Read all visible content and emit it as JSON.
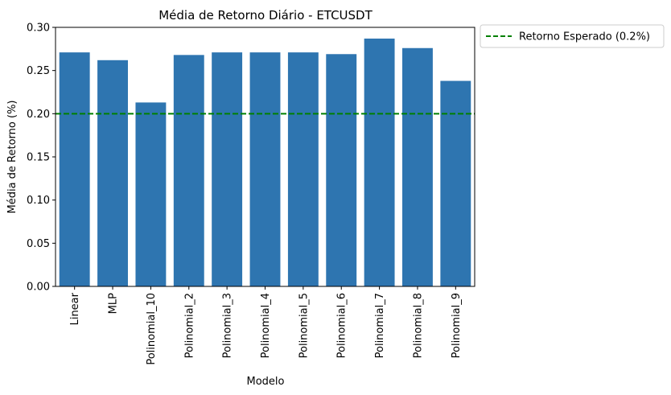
{
  "chart_data": {
    "type": "bar",
    "title": "Média de Retorno Diário - ETCUSDT",
    "xlabel": "Modelo",
    "ylabel": "Média de Retorno (%)",
    "ylim": [
      0,
      0.3
    ],
    "yticks": [
      "0.00",
      "0.05",
      "0.10",
      "0.15",
      "0.20",
      "0.25",
      "0.30"
    ],
    "grid": false,
    "legend_placement": "outside-top-right",
    "categories": [
      "Linear",
      "MLP",
      "Polinomial_10",
      "Polinomial_2",
      "Polinomial_3",
      "Polinomial_4",
      "Polinomial_5",
      "Polinomial_6",
      "Polinomial_7",
      "Polinomial_8",
      "Polinomial_9"
    ],
    "values": [
      0.271,
      0.262,
      0.213,
      0.268,
      0.271,
      0.271,
      0.271,
      0.269,
      0.287,
      0.276,
      0.238
    ],
    "bar_color": "#2e75b0",
    "reference_line": {
      "value": 0.2,
      "label": "Retorno Esperado (0.2%)",
      "color": "#008000",
      "style": "dashed"
    }
  }
}
